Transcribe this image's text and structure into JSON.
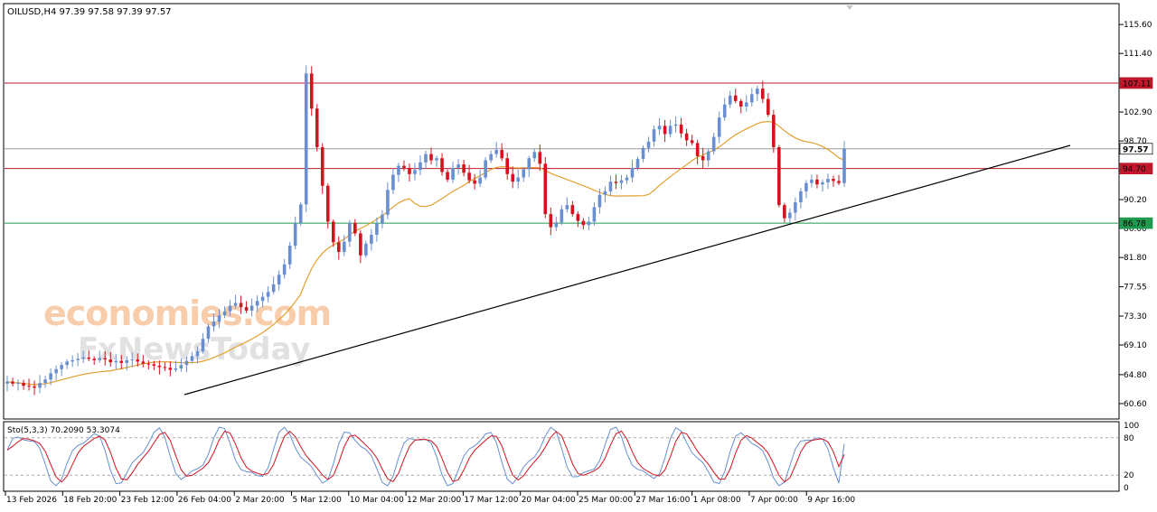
{
  "chart_data": {
    "type": "candlestick",
    "symbol_header": "OILUSD,H4  97.39 97.58 97.39 97.57",
    "ylim": [
      58.5,
      118.5
    ],
    "y_ticks": [
      "115.60",
      "111.40",
      "107.20",
      "102.90",
      "98.70",
      "94.50",
      "90.20",
      "86.00",
      "81.80",
      "77.55",
      "73.30",
      "69.10",
      "64.80",
      "60.60"
    ],
    "x_ticks": [
      "13 Feb 2026",
      "18 Feb 20:00",
      "23 Feb 12:00",
      "26 Feb 04:00",
      "2 Mar 20:00",
      "5 Mar 12:00",
      "10 Mar 04:00",
      "12 Mar 20:00",
      "17 Mar 12:00",
      "20 Mar 04:00",
      "25 Mar 00:00",
      "27 Mar 16:00",
      "1 Apr 08:00",
      "7 Apr 00:00",
      "9 Apr 16:00"
    ],
    "last_price": "97.57",
    "levels": [
      {
        "value": 107.11,
        "label": "107.11",
        "color": "#c0172c"
      },
      {
        "value": 94.7,
        "label": "94.70",
        "color": "#c0172c"
      },
      {
        "value": 86.78,
        "label": "86.78",
        "color": "#1f9a4e"
      },
      {
        "value": 97.57,
        "label": "97.57",
        "color": "#9a9a9a"
      }
    ],
    "up_color": "#6a8fd0",
    "down_color": "#d3141f",
    "ma_color": "#e39f2e",
    "closes": [
      63.8,
      63.5,
      63.6,
      63.2,
      63.1,
      62.9,
      63.6,
      64.1,
      65.0,
      65.6,
      66.2,
      66.7,
      66.9,
      67.1,
      67.3,
      67.1,
      66.9,
      67.2,
      67.0,
      66.6,
      66.8,
      66.5,
      66.9,
      67.0,
      66.7,
      66.4,
      66.3,
      66.1,
      65.9,
      65.8,
      65.5,
      65.7,
      66.2,
      66.8,
      67.5,
      68.2,
      70.0,
      71.8,
      72.5,
      73.4,
      74.0,
      74.8,
      75.2,
      74.6,
      74.1,
      74.8,
      75.5,
      76.1,
      76.8,
      77.9,
      79.3,
      80.8,
      83.5,
      86.8,
      89.5,
      108.5,
      103.4,
      97.8,
      92.2,
      87.0,
      84.0,
      82.6,
      84.1,
      86.8,
      85.3,
      82.1,
      83.8,
      85.1,
      86.7,
      88.0,
      91.6,
      93.8,
      95.1,
      94.8,
      93.9,
      94.5,
      95.6,
      96.8,
      95.9,
      96.2,
      94.2,
      93.1,
      94.8,
      95.3,
      94.1,
      93.0,
      92.5,
      93.4,
      95.9,
      96.8,
      97.4,
      96.2,
      93.9,
      92.8,
      93.4,
      94.6,
      96.2,
      97.1,
      95.4,
      88.1,
      86.2,
      86.9,
      88.8,
      89.4,
      88.1,
      87.1,
      86.5,
      87.0,
      89.1,
      90.9,
      91.4,
      92.8,
      92.6,
      93.0,
      93.4,
      94.8,
      96.1,
      97.7,
      98.6,
      100.4,
      100.9,
      99.7,
      100.9,
      101.1,
      99.8,
      98.8,
      98.4,
      96.5,
      95.9,
      97.2,
      99.3,
      102.1,
      104.0,
      105.3,
      104.5,
      103.7,
      104.3,
      105.5,
      106.3,
      104.8,
      102.5,
      97.8,
      89.4,
      87.5,
      88.3,
      89.8,
      91.4,
      92.6,
      93.1,
      92.4,
      92.7,
      93.2,
      92.9,
      92.6,
      97.57
    ],
    "stochastic": {
      "label": "Sto(5,3,3) 70.2090 53.3074",
      "k": 70.209,
      "d": 53.3074,
      "levels": [
        80,
        20
      ],
      "y_ticks": [
        "100",
        "80",
        "20",
        "0"
      ],
      "k_color": "#6a8fd0",
      "d_color": "#d3141f"
    }
  },
  "watermark": {
    "line1": "economies.com",
    "line2_a": "F",
    "line2_b": "xNewsToday"
  }
}
